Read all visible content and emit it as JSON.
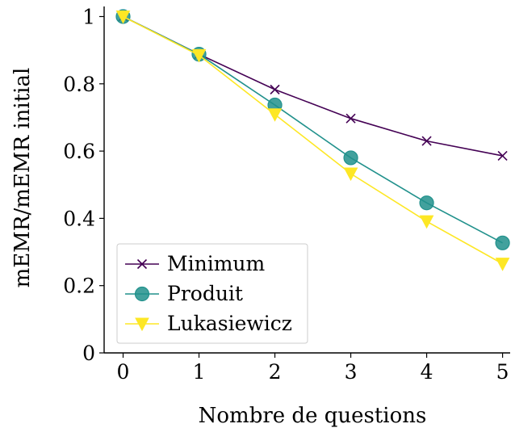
{
  "chart_data": {
    "type": "line",
    "title": "",
    "xlabel": "Nombre de questions",
    "ylabel": "mEMR/mEMR initial",
    "x": [
      0,
      1,
      2,
      3,
      4,
      5
    ],
    "xlim": [
      -0.25,
      5.1
    ],
    "ylim": [
      0,
      1.03
    ],
    "xticks": [
      "0",
      "1",
      "2",
      "3",
      "4",
      "5"
    ],
    "yticks": [
      "0",
      "0.2",
      "0.4",
      "0.6",
      "0.8",
      "1"
    ],
    "grid": false,
    "legend_position": "bottom-left",
    "series": [
      {
        "name": "Minimum",
        "color": "#440154",
        "marker": "x",
        "values": [
          1.0,
          0.888,
          0.783,
          0.697,
          0.63,
          0.586
        ]
      },
      {
        "name": "Produit",
        "color": "#21918c",
        "marker": "circle",
        "values": [
          1.0,
          0.888,
          0.737,
          0.58,
          0.446,
          0.327
        ]
      },
      {
        "name": "Lukasiewicz",
        "color": "#fde725",
        "marker": "triangle-down",
        "values": [
          1.0,
          0.885,
          0.709,
          0.533,
          0.391,
          0.265
        ]
      }
    ]
  }
}
